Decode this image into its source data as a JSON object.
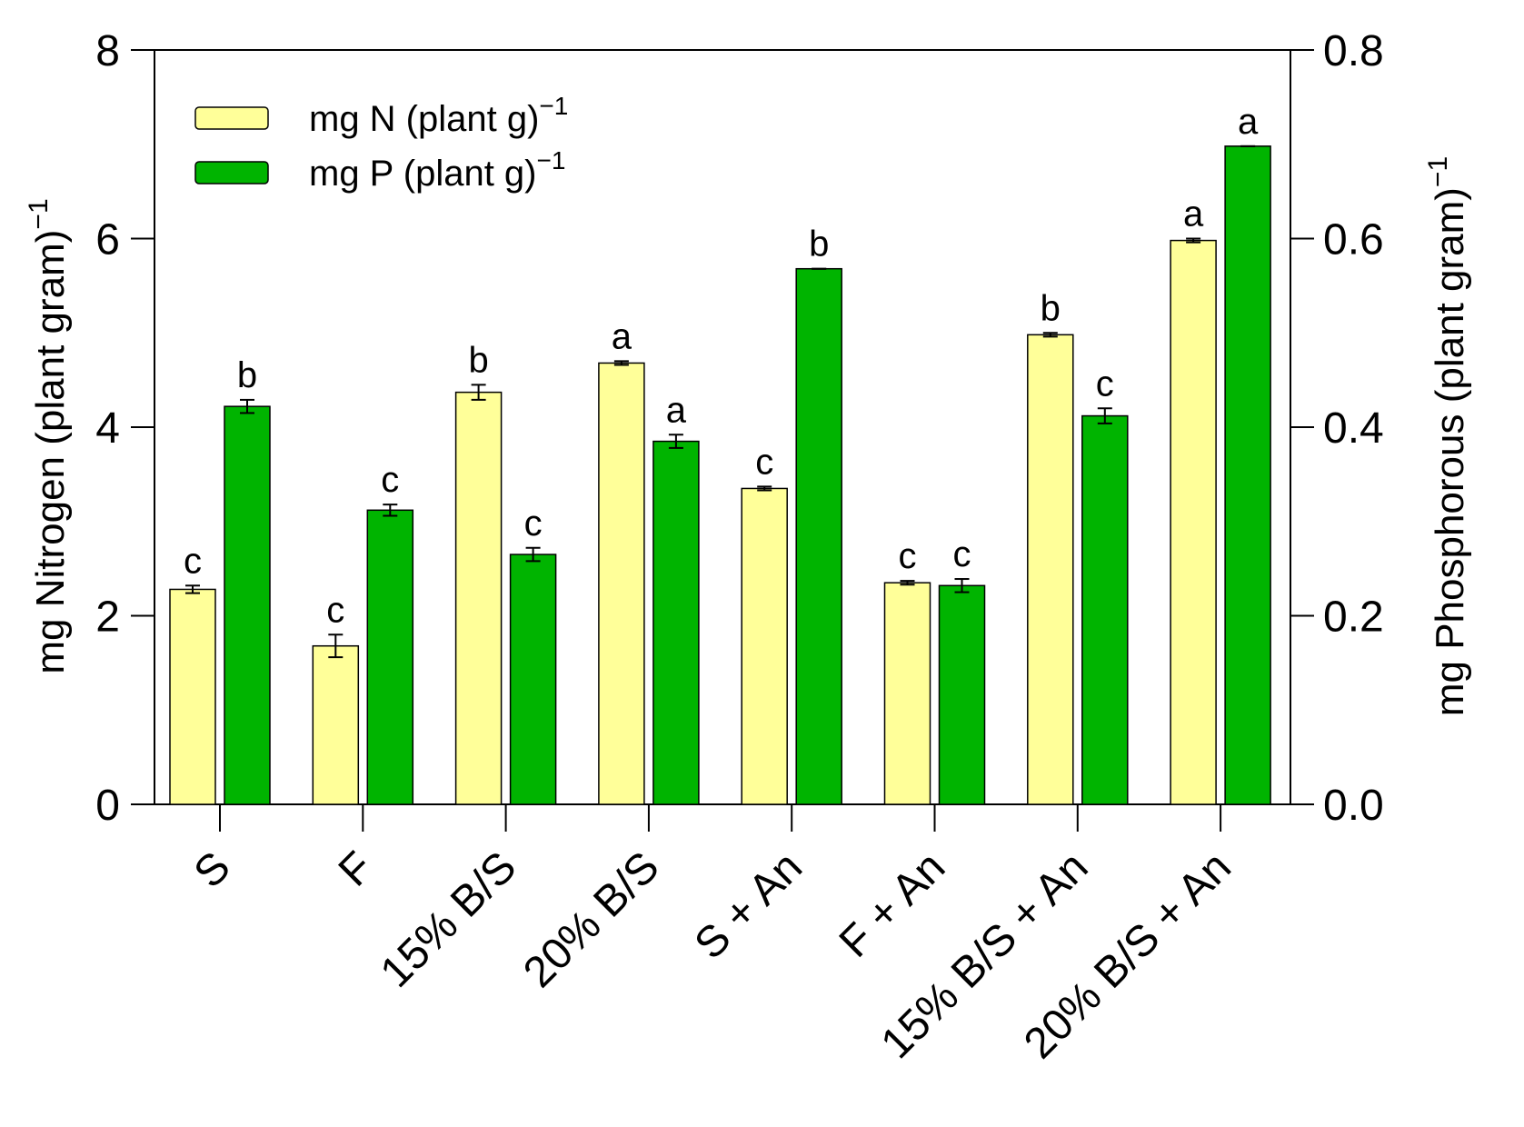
{
  "chart_data": {
    "type": "bar",
    "categories": [
      "S",
      "F",
      "15% B/S",
      "20% B/S",
      "S + An",
      "F + An",
      "15% B/S + An",
      "20% B/S + An"
    ],
    "series": [
      {
        "name": "mg N (plant g)",
        "name_superscript": "−1",
        "axis": "left",
        "color": "#ffff99",
        "values": [
          2.28,
          1.68,
          4.37,
          4.68,
          3.35,
          2.35,
          4.98,
          5.98
        ],
        "errors": [
          0.04,
          0.12,
          0.08,
          0.02,
          0.02,
          0.02,
          0.02,
          0.02
        ],
        "letters": [
          "c",
          "c",
          "b",
          "a",
          "c",
          "c",
          "b",
          "a"
        ]
      },
      {
        "name": "mg P (plant g)",
        "name_superscript": "−1",
        "axis": "right",
        "color": "#00b400",
        "values": [
          0.422,
          0.312,
          0.265,
          0.385,
          0.568,
          0.232,
          0.412,
          0.698
        ],
        "errors": [
          0.007,
          0.006,
          0.007,
          0.007,
          0.0,
          0.007,
          0.008,
          0.0
        ],
        "letters": [
          "b",
          "c",
          "c",
          "a",
          "b",
          "c",
          "c",
          "a"
        ]
      }
    ],
    "y_left": {
      "label": "mg Nitrogen (plant gram)",
      "label_superscript": "−1",
      "lim": [
        0,
        8
      ],
      "ticks": [
        "0",
        "2",
        "4",
        "6",
        "8"
      ],
      "tick_values": [
        0,
        2,
        4,
        6,
        8
      ]
    },
    "y_right": {
      "label": "mg Phosphorous (plant gram)",
      "label_superscript": "−1",
      "lim": [
        0,
        0.8
      ],
      "ticks": [
        "0.0",
        "0.2",
        "0.4",
        "0.6",
        "0.8"
      ],
      "tick_values": [
        0,
        0.2,
        0.4,
        0.6,
        0.8
      ]
    },
    "title": "",
    "xlabel": "",
    "legend_position": "top-left",
    "grid": false
  }
}
